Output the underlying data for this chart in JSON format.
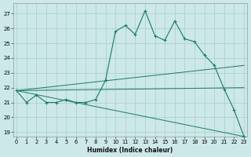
{
  "xlabel": "Humidex (Indice chaleur)",
  "bg_color": "#cce8e8",
  "grid_color": "#aacccc",
  "line_color": "#1a7a6a",
  "x_ticks": [
    0,
    1,
    2,
    3,
    4,
    5,
    6,
    7,
    8,
    9,
    10,
    11,
    12,
    13,
    14,
    15,
    16,
    17,
    18,
    19,
    20,
    21,
    22,
    23
  ],
  "y_ticks": [
    19,
    20,
    21,
    22,
    23,
    24,
    25,
    26,
    27
  ],
  "xlim": [
    -0.3,
    23.3
  ],
  "ylim": [
    18.7,
    27.7
  ],
  "main_x": [
    0,
    1,
    2,
    3,
    4,
    5,
    6,
    7,
    8,
    9,
    10,
    11,
    12,
    13,
    14,
    15,
    16,
    17,
    18,
    19,
    20,
    21,
    22,
    23
  ],
  "main_y": [
    21.8,
    21.0,
    21.5,
    21.0,
    21.0,
    21.2,
    21.0,
    21.0,
    21.2,
    22.5,
    25.8,
    26.2,
    25.6,
    27.2,
    25.5,
    25.2,
    26.5,
    25.3,
    25.1,
    24.2,
    23.5,
    21.9,
    20.5,
    18.7
  ],
  "line2_x": [
    0,
    23
  ],
  "line2_y": [
    21.8,
    23.5
  ],
  "line3_x": [
    0,
    23
  ],
  "line3_y": [
    21.8,
    22.0
  ],
  "line4_x": [
    0,
    23
  ],
  "line4_y": [
    21.8,
    18.7
  ]
}
